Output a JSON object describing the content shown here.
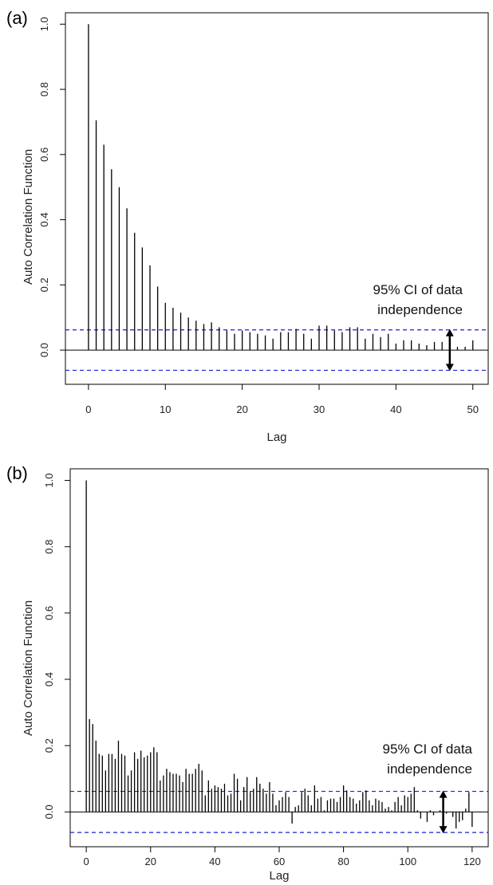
{
  "colors": {
    "bar": "#000000",
    "ci_line": "#1f1fd6",
    "frame": "#000000",
    "arrow": "#000000"
  },
  "chart_data": [
    {
      "type": "bar",
      "panel_label": "(a)",
      "xlabel": "Lag",
      "ylabel": "Auto Correlation Function",
      "xlim": [
        -3,
        52
      ],
      "ylim": [
        -0.105,
        1.035
      ],
      "xticks": [
        0,
        10,
        20,
        30,
        40,
        50
      ],
      "yticks": [
        0.0,
        0.2,
        0.4,
        0.6,
        0.8,
        1.0
      ],
      "ci": 0.062,
      "annotation": [
        "95% CI of data",
        "independence"
      ],
      "arrow_at": 47,
      "x": [
        0,
        1,
        2,
        3,
        4,
        5,
        6,
        7,
        8,
        9,
        10,
        11,
        12,
        13,
        14,
        15,
        16,
        17,
        18,
        19,
        20,
        21,
        22,
        23,
        24,
        25,
        26,
        27,
        28,
        29,
        30,
        31,
        32,
        33,
        34,
        35,
        36,
        37,
        38,
        39,
        40,
        41,
        42,
        43,
        44,
        45,
        46,
        47,
        48,
        49,
        50
      ],
      "values": [
        1.0,
        0.705,
        0.63,
        0.555,
        0.5,
        0.435,
        0.36,
        0.315,
        0.26,
        0.195,
        0.145,
        0.13,
        0.115,
        0.1,
        0.09,
        0.08,
        0.085,
        0.07,
        0.06,
        0.05,
        0.06,
        0.055,
        0.05,
        0.045,
        0.035,
        0.055,
        0.055,
        0.065,
        0.05,
        0.035,
        0.075,
        0.075,
        0.06,
        0.055,
        0.07,
        0.07,
        0.035,
        0.05,
        0.04,
        0.05,
        0.02,
        0.03,
        0.03,
        0.02,
        0.015,
        0.025,
        0.025,
        0.035,
        0.01,
        0.01,
        0.03
      ]
    },
    {
      "type": "bar",
      "panel_label": "(b)",
      "xlabel": "Lag",
      "ylabel": "Auto Correlation Function",
      "xlim": [
        -5,
        125
      ],
      "ylim": [
        -0.105,
        1.035
      ],
      "xticks": [
        0,
        20,
        40,
        60,
        80,
        100,
        120
      ],
      "yticks": [
        0.0,
        0.2,
        0.4,
        0.6,
        0.8,
        1.0
      ],
      "ci": 0.062,
      "annotation": [
        "95% CI of data",
        "independence"
      ],
      "arrow_at": 111,
      "x": [
        0,
        1,
        2,
        3,
        4,
        5,
        6,
        7,
        8,
        9,
        10,
        11,
        12,
        13,
        14,
        15,
        16,
        17,
        18,
        19,
        20,
        21,
        22,
        23,
        24,
        25,
        26,
        27,
        28,
        29,
        30,
        31,
        32,
        33,
        34,
        35,
        36,
        37,
        38,
        39,
        40,
        41,
        42,
        43,
        44,
        45,
        46,
        47,
        48,
        49,
        50,
        51,
        52,
        53,
        54,
        55,
        56,
        57,
        58,
        59,
        60,
        61,
        62,
        63,
        64,
        65,
        66,
        67,
        68,
        69,
        70,
        71,
        72,
        73,
        74,
        75,
        76,
        77,
        78,
        79,
        80,
        81,
        82,
        83,
        84,
        85,
        86,
        87,
        88,
        89,
        90,
        91,
        92,
        93,
        94,
        95,
        96,
        97,
        98,
        99,
        100,
        101,
        102,
        103,
        104,
        105,
        106,
        107,
        108,
        109,
        110,
        111,
        112,
        113,
        114,
        115,
        116,
        117,
        118,
        119,
        120
      ],
      "values": [
        1.0,
        0.28,
        0.265,
        0.215,
        0.175,
        0.17,
        0.125,
        0.175,
        0.175,
        0.16,
        0.215,
        0.175,
        0.17,
        0.11,
        0.125,
        0.18,
        0.16,
        0.185,
        0.165,
        0.17,
        0.18,
        0.195,
        0.18,
        0.095,
        0.11,
        0.13,
        0.12,
        0.115,
        0.115,
        0.11,
        0.09,
        0.13,
        0.115,
        0.115,
        0.13,
        0.145,
        0.125,
        0.05,
        0.095,
        0.07,
        0.08,
        0.075,
        0.07,
        0.085,
        0.05,
        0.055,
        0.115,
        0.1,
        0.035,
        0.075,
        0.105,
        0.06,
        0.07,
        0.105,
        0.085,
        0.07,
        0.055,
        0.09,
        0.055,
        0.02,
        0.035,
        0.045,
        0.06,
        0.045,
        -0.035,
        0.015,
        0.02,
        0.06,
        0.07,
        0.05,
        0.02,
        0.08,
        0.04,
        0.045,
        0.005,
        0.035,
        0.04,
        0.04,
        0.03,
        0.045,
        0.08,
        0.065,
        0.045,
        0.04,
        0.025,
        0.035,
        0.06,
        0.065,
        0.035,
        0.02,
        0.04,
        0.035,
        0.03,
        0.01,
        0.015,
        0.005,
        0.03,
        0.045,
        0.02,
        0.05,
        0.045,
        0.055,
        0.075,
        0.005,
        -0.02,
        0.0,
        -0.03,
        0.005,
        -0.01,
        0.0,
        0.005,
        -0.04,
        -0.005,
        0.0,
        -0.015,
        -0.05,
        -0.03,
        -0.025,
        0.01,
        0.06,
        -0.045
      ]
    }
  ]
}
